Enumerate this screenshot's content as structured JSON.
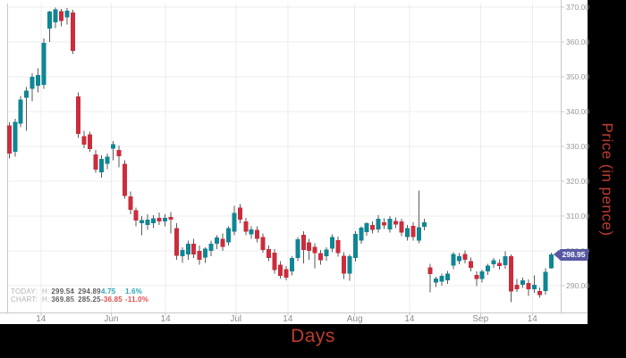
{
  "chart": {
    "up_color": "#0F8694",
    "down_color": "#CB2D3C",
    "wick_color": "#5A5A5A",
    "grid_color": "#ECECEC",
    "axis_line_color": "#C8C8C8",
    "tick_text_color": "#999999",
    "axis_title_color": "#C03A2F",
    "panel_background": "#FFFFFF",
    "outer_background": "#000000",
    "current_price_badge": {
      "value": "298.95",
      "bg": "#5758A3",
      "text_color": "#FFFFFF"
    },
    "legend": {
      "rows": [
        {
          "name": "TODAY:",
          "h_label": "H:",
          "high": "299.54",
          "l_label": "L:",
          "low": "294.89",
          "change": "4.75",
          "pct": "1.6%",
          "color": "#2BA7B6"
        },
        {
          "name": "CHART:",
          "h_label": "H:",
          "high": "369.85",
          "l_label": "L:",
          "low": "285.25",
          "change": "-36.85",
          "pct": "-11.0%",
          "color": "#DD4E4E"
        }
      ]
    }
  },
  "chart_data": {
    "type": "candlestick",
    "xlabel": "Days",
    "ylabel": "Price (in pence)",
    "grid": true,
    "ylim": [
      283,
      371
    ],
    "y_ticks": [
      290,
      300,
      310,
      320,
      330,
      340,
      350,
      360,
      370
    ],
    "y_tick_labels": [
      "290.00",
      "300.00",
      "310.00",
      "320.00",
      "330.00",
      "340.00",
      "350.00",
      "360.00",
      "370.00"
    ],
    "x_ticks": [
      {
        "label": "14",
        "i": 5.5
      },
      {
        "label": "Jun",
        "i": 17.7
      },
      {
        "label": "14",
        "i": 27.1
      },
      {
        "label": "Jul",
        "i": 39.3
      },
      {
        "label": "14",
        "i": 48.3
      },
      {
        "label": "Aug",
        "i": 59.9
      },
      {
        "label": "14",
        "i": 69.4
      },
      {
        "label": "Sep",
        "i": 81.7
      },
      {
        "label": "14",
        "i": 90.7
      }
    ],
    "last_price": 298.95,
    "summary": {
      "today": {
        "high": 299.54,
        "low": 294.89,
        "change": 4.75,
        "change_pct": "1.6%"
      },
      "chart": {
        "high": 369.85,
        "low": 285.25,
        "change": -36.85,
        "change_pct": "-11.0%"
      }
    },
    "candles": [
      [
        336.0,
        336.9,
        326.5,
        328.0
      ],
      [
        328.5,
        338.0,
        327.0,
        337.0
      ],
      [
        336.5,
        344.5,
        335.5,
        343.5
      ],
      [
        344.0,
        347.0,
        334.5,
        346.0
      ],
      [
        346.5,
        351.0,
        343.0,
        350.0
      ],
      [
        347.5,
        352.5,
        345.5,
        350.5
      ],
      [
        347.7,
        361.0,
        346.5,
        359.8
      ],
      [
        363.8,
        369.0,
        360.0,
        368.7
      ],
      [
        365.6,
        369.85,
        364.0,
        369.4
      ],
      [
        368.8,
        369.5,
        364.5,
        366.0
      ],
      [
        367.0,
        369.8,
        365.0,
        369.0
      ],
      [
        368.5,
        369.2,
        356.5,
        357.4
      ],
      [
        344.4,
        345.5,
        332.5,
        333.6
      ],
      [
        333.0,
        334.5,
        329.5,
        330.5
      ],
      [
        333.5,
        334.2,
        328.5,
        329.2
      ],
      [
        327.7,
        329.0,
        322.5,
        323.3
      ],
      [
        322.6,
        327.5,
        321.0,
        326.4
      ],
      [
        325.0,
        328.0,
        323.5,
        327.0
      ],
      [
        329.3,
        331.5,
        326.0,
        330.6
      ],
      [
        329.0,
        330.2,
        324.0,
        327.2
      ],
      [
        325.0,
        326.0,
        315.0,
        315.8
      ],
      [
        315.6,
        317.0,
        310.5,
        311.8
      ],
      [
        311.7,
        312.5,
        307.0,
        308.7
      ],
      [
        308.0,
        310.0,
        304.5,
        308.8
      ],
      [
        307.5,
        310.5,
        306.0,
        309.0
      ],
      [
        308.0,
        310.2,
        306.5,
        309.3
      ],
      [
        309.5,
        311.0,
        307.5,
        308.5
      ],
      [
        308.5,
        310.5,
        307.0,
        309.5
      ],
      [
        309.8,
        311.2,
        305.0,
        309.0
      ],
      [
        306.6,
        308.0,
        297.5,
        298.6
      ],
      [
        298.5,
        301.0,
        296.5,
        300.2
      ],
      [
        299.0,
        303.0,
        297.5,
        302.0
      ],
      [
        302.0,
        303.5,
        298.0,
        299.0
      ],
      [
        300.0,
        301.5,
        296.0,
        297.4
      ],
      [
        298.1,
        301.0,
        296.5,
        300.6
      ],
      [
        300.0,
        303.0,
        298.5,
        302.0
      ],
      [
        302.0,
        304.5,
        300.5,
        303.8
      ],
      [
        303.5,
        305.0,
        300.0,
        301.2
      ],
      [
        302.5,
        307.0,
        301.5,
        306.5
      ],
      [
        305.5,
        313.0,
        304.5,
        310.9
      ],
      [
        312.5,
        313.5,
        308.0,
        309.0
      ],
      [
        308.5,
        309.5,
        304.5,
        305.5
      ],
      [
        304.8,
        307.0,
        303.5,
        306.2
      ],
      [
        306.0,
        307.0,
        302.5,
        303.5
      ],
      [
        304.0,
        305.0,
        299.5,
        300.3
      ],
      [
        300.5,
        301.5,
        297.0,
        298.0
      ],
      [
        299.5,
        300.5,
        293.5,
        294.5
      ],
      [
        296.0,
        297.0,
        292.0,
        292.8
      ],
      [
        294.8,
        295.6,
        291.5,
        292.3
      ],
      [
        294.1,
        298.5,
        293.0,
        298.0
      ],
      [
        298.0,
        304.0,
        297.0,
        303.3
      ],
      [
        304.6,
        305.6,
        296.4,
        300.3
      ],
      [
        302.5,
        303.5,
        297.5,
        300.0
      ],
      [
        301.2,
        302.2,
        295.0,
        299.3
      ],
      [
        299.3,
        300.3,
        296.0,
        297.3
      ],
      [
        298.4,
        301.0,
        297.2,
        300.4
      ],
      [
        300.6,
        304.8,
        299.6,
        304.0
      ],
      [
        303.1,
        304.1,
        298.3,
        299.3
      ],
      [
        298.6,
        299.6,
        291.9,
        293.4
      ],
      [
        293.4,
        299.0,
        291.4,
        298.4
      ],
      [
        297.9,
        305.6,
        296.9,
        304.9
      ],
      [
        303.0,
        307.0,
        302.0,
        306.7
      ],
      [
        305.4,
        308.2,
        304.4,
        307.9
      ],
      [
        307.5,
        308.5,
        305.0,
        306.0
      ],
      [
        306.2,
        310.2,
        305.2,
        309.2
      ],
      [
        308.2,
        309.4,
        306.3,
        307.3
      ],
      [
        306.2,
        310.0,
        305.2,
        309.2
      ],
      [
        308.6,
        309.6,
        306.6,
        307.6
      ],
      [
        308.4,
        309.2,
        304.2,
        305.2
      ],
      [
        304.0,
        307.5,
        303.0,
        306.5
      ],
      [
        307.2,
        308.2,
        303.0,
        304.0
      ],
      [
        303.0,
        317.3,
        302.2,
        306.8
      ],
      [
        306.9,
        309.2,
        305.9,
        308.2
      ],
      [
        295.3,
        296.3,
        288.1,
        293.3
      ],
      [
        290.9,
        292.6,
        289.6,
        292.0
      ],
      [
        291.1,
        293.5,
        290.0,
        292.8
      ],
      [
        291.5,
        294.2,
        290.5,
        293.5
      ],
      [
        295.8,
        299.6,
        294.8,
        299.1
      ],
      [
        297.1,
        299.4,
        296.1,
        298.4
      ],
      [
        299.1,
        300.1,
        296.4,
        297.4
      ],
      [
        297.1,
        298.1,
        294.1,
        295.1
      ],
      [
        293.1,
        294.1,
        289.9,
        291.9
      ],
      [
        291.9,
        294.6,
        290.9,
        294.1
      ],
      [
        294.1,
        296.3,
        293.1,
        295.8
      ],
      [
        296.1,
        298.0,
        295.1,
        297.3
      ],
      [
        296.6,
        297.6,
        294.6,
        295.6
      ],
      [
        295.9,
        299.9,
        294.9,
        298.4
      ],
      [
        298.4,
        299.0,
        285.25,
        288.3
      ],
      [
        290.3,
        291.9,
        288.2,
        289.0
      ],
      [
        290.3,
        292.3,
        289.3,
        291.5
      ],
      [
        290.8,
        291.8,
        287.0,
        289.0
      ],
      [
        289.0,
        293.0,
        288.0,
        290.3
      ],
      [
        288.5,
        289.5,
        286.5,
        287.3
      ],
      [
        288.5,
        295.0,
        287.5,
        294.0
      ],
      [
        295.0,
        299.54,
        294.89,
        298.95
      ]
    ]
  }
}
